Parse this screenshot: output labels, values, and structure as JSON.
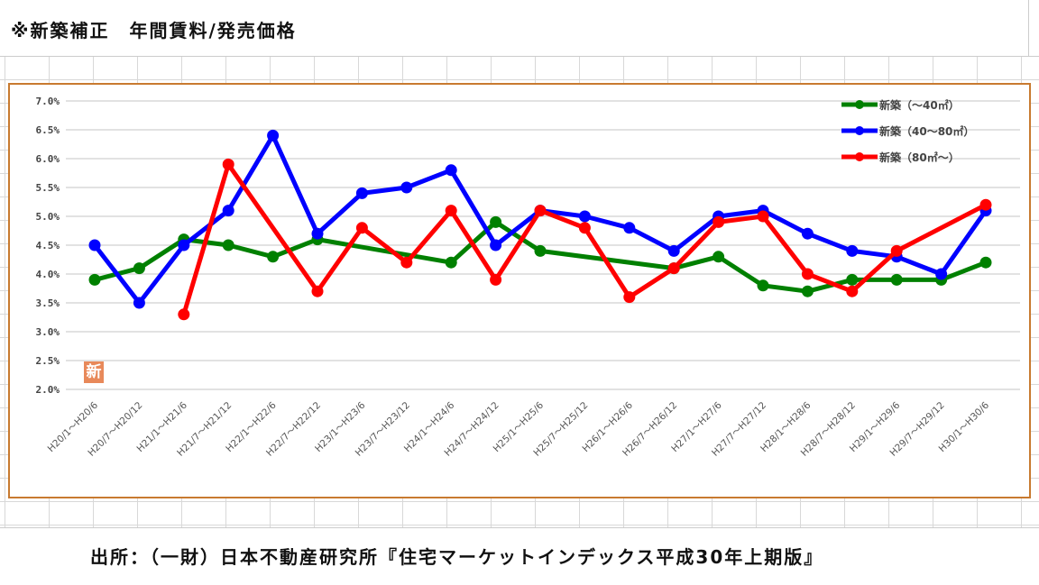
{
  "title": "※新築補正　年間賃料/発売価格",
  "footer": "出所：（一財）日本不動産研究所『住宅マーケットインデックス平成30年上期版』",
  "badge": "新",
  "chart_data": {
    "type": "line",
    "title": "",
    "xlabel": "",
    "ylabel": "",
    "ylim": [
      2.0,
      7.0
    ],
    "yticks": [
      "2.0%",
      "2.5%",
      "3.0%",
      "3.5%",
      "4.0%",
      "4.5%",
      "5.0%",
      "5.5%",
      "6.0%",
      "6.5%",
      "7.0%"
    ],
    "grid": true,
    "legend_position": "top-right",
    "categories": [
      "H20/1～H20/6",
      "H20/7～H20/12",
      "H21/1～H21/6",
      "H21/7～H21/12",
      "H22/1～H22/6",
      "H22/7～H22/12",
      "H23/1～H23/6",
      "H23/7～H23/12",
      "H24/1～H24/6",
      "H24/7～H24/12",
      "H25/1～H25/6",
      "H25/7～H25/12",
      "H26/1～H26/6",
      "H26/7～H26/12",
      "H27/1～H27/6",
      "H27/7～H27/12",
      "H28/1～H28/6",
      "H28/7～H28/12",
      "H29/1～H29/6",
      "H29/7～H29/12",
      "H30/1～H30/6"
    ],
    "series": [
      {
        "name": "新築（～40㎡）",
        "color": "#008000",
        "values": [
          3.9,
          4.1,
          4.6,
          4.5,
          4.3,
          4.6,
          null,
          null,
          4.2,
          4.9,
          4.4,
          null,
          null,
          4.1,
          4.3,
          3.8,
          3.7,
          3.9,
          3.9,
          3.9,
          4.2
        ]
      },
      {
        "name": "新築（40～80㎡）",
        "color": "#0000ff",
        "values": [
          4.5,
          3.5,
          4.5,
          5.1,
          6.4,
          4.7,
          5.4,
          5.5,
          5.8,
          4.5,
          5.1,
          5.0,
          4.8,
          4.4,
          5.0,
          5.1,
          4.7,
          4.4,
          4.3,
          4.0,
          5.1
        ]
      },
      {
        "name": "新築（80㎡～）",
        "color": "#ff0000",
        "values": [
          null,
          null,
          3.3,
          5.9,
          null,
          3.7,
          4.8,
          4.2,
          5.1,
          3.9,
          5.1,
          4.8,
          3.6,
          4.1,
          4.9,
          5.0,
          4.0,
          3.7,
          4.4,
          null,
          5.2
        ]
      }
    ]
  }
}
